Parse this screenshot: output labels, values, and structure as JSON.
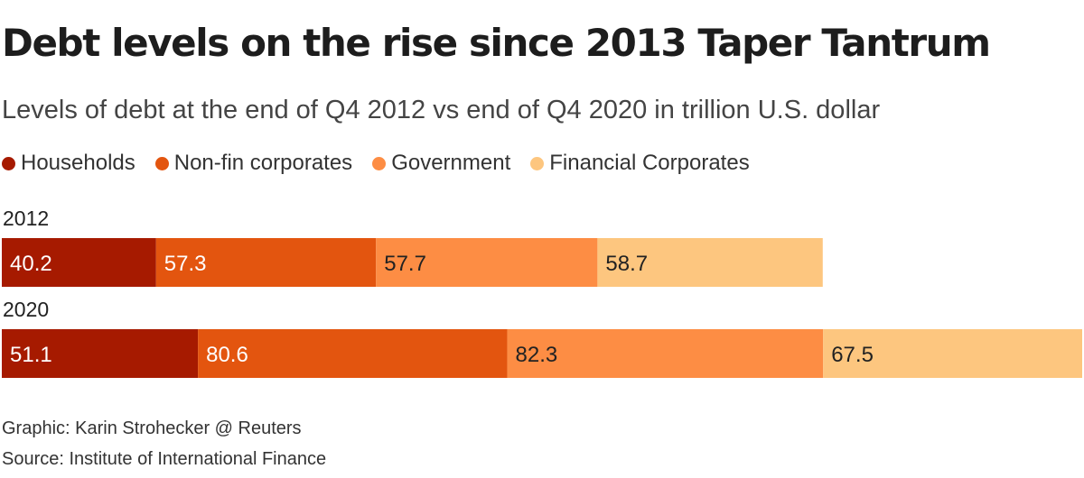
{
  "header": {
    "title": "Debt levels on the rise since 2013 Taper Tantrum",
    "subtitle": "Levels of debt at the end of Q4 2012 vs end of Q4 2020 in trillion U.S. dollar"
  },
  "legend": [
    {
      "label": "Households",
      "color": "#a61a00"
    },
    {
      "label": "Non-fin corporates",
      "color": "#e3550f"
    },
    {
      "label": "Government",
      "color": "#fd8d44"
    },
    {
      "label": "Financial Corporates",
      "color": "#fdc67f"
    }
  ],
  "chart_data": {
    "type": "bar",
    "orientation": "horizontal",
    "stacked": true,
    "title": "Debt levels on the rise since 2013 Taper Tantrum",
    "subtitle": "Levels of debt at the end of Q4 2012 vs end of Q4 2020 in trillion U.S. dollar",
    "categories": [
      "2012",
      "2020"
    ],
    "series": [
      {
        "name": "Households",
        "values": [
          40.2,
          51.1
        ],
        "color": "#a61a00",
        "label_color": "#ffffff"
      },
      {
        "name": "Non-fin corporates",
        "values": [
          57.3,
          80.6
        ],
        "color": "#e3550f",
        "label_color": "#ffffff"
      },
      {
        "name": "Government",
        "values": [
          57.7,
          82.3
        ],
        "color": "#fd8d44",
        "label_color": "#222222"
      },
      {
        "name": "Financial Corporates",
        "values": [
          58.7,
          67.5
        ],
        "color": "#fdc67f",
        "label_color": "#222222"
      }
    ],
    "xlim": [
      0,
      281.5
    ],
    "grid": false,
    "legend_position": "top-left"
  },
  "footer": {
    "credit": "Graphic: Karin Strohecker @ Reuters",
    "source": "Source: Institute of International Finance"
  }
}
